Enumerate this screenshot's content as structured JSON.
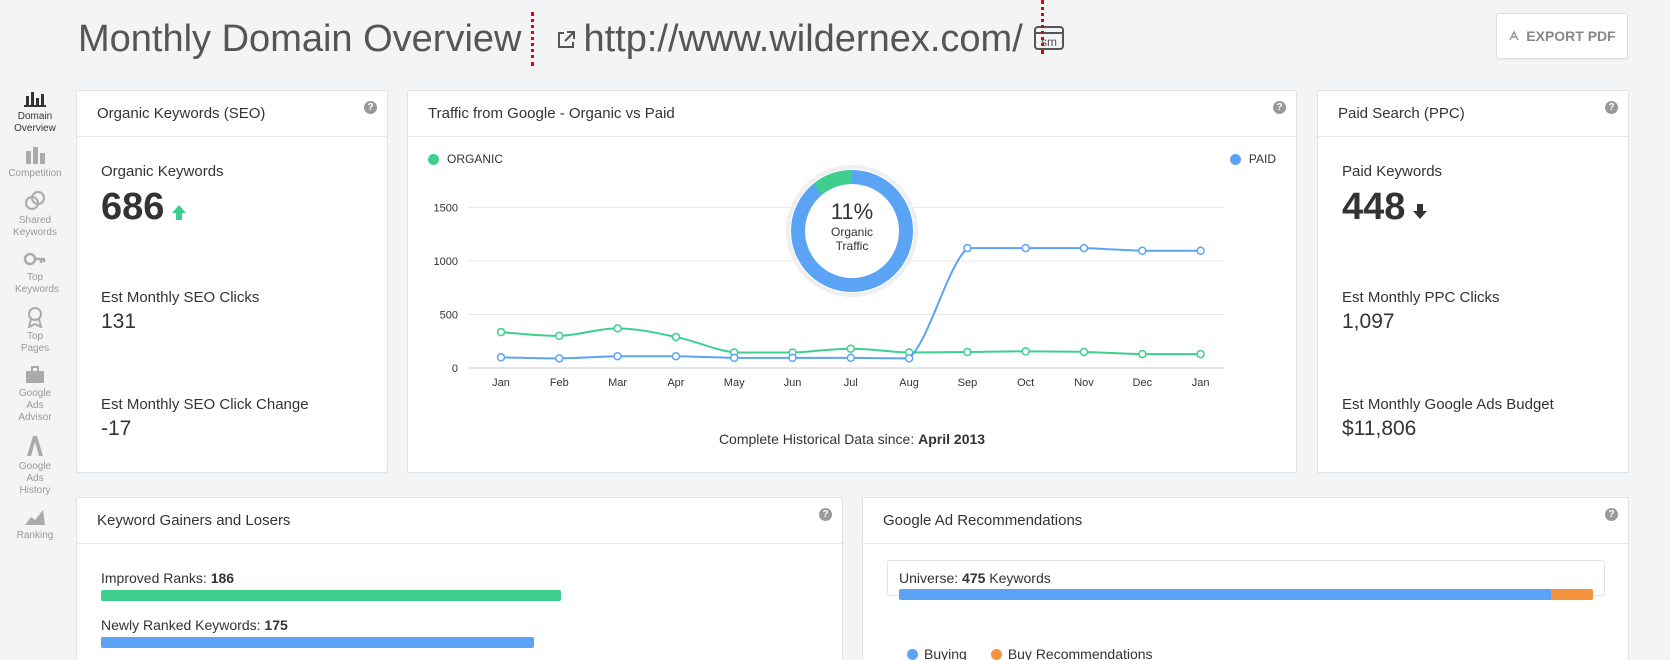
{
  "header": {
    "title": "Monthly Domain Overview",
    "url": "http://www.wildernex.com/",
    "sm_badge": "sm",
    "export_label": "EXPORT PDF"
  },
  "sidebar": {
    "items": [
      {
        "label": "Domain Overview",
        "icon": "bar-chart-icon",
        "active": true
      },
      {
        "label": "Competition",
        "icon": "competition-icon"
      },
      {
        "label": "Shared Keywords",
        "icon": "shared-keywords-icon"
      },
      {
        "label": "Top Keywords",
        "icon": "key-icon"
      },
      {
        "label": "Top Pages",
        "icon": "ribbon-icon"
      },
      {
        "label": "Google Ads Advisor",
        "icon": "briefcase-icon"
      },
      {
        "label": "Google Ads History",
        "icon": "history-icon"
      },
      {
        "label": "Ranking",
        "icon": "ranking-icon"
      }
    ]
  },
  "seo": {
    "title": "Organic Keywords (SEO)",
    "keywords_label": "Organic Keywords",
    "keywords_value": "686",
    "clicks_label": "Est Monthly SEO Clicks",
    "clicks_value": "131",
    "change_label": "Est Monthly SEO Click Change",
    "change_value": "-17"
  },
  "traffic": {
    "title": "Traffic from Google - Organic vs Paid",
    "legend_organic": "ORGANIC",
    "legend_paid": "PAID",
    "donut_percent": "11%",
    "donut_label_1": "Organic",
    "donut_label_2": "Traffic",
    "footer_prefix": "Complete Historical Data since:",
    "footer_date": "April 2013"
  },
  "ppc": {
    "title": "Paid Search (PPC)",
    "keywords_label": "Paid Keywords",
    "keywords_value": "448",
    "clicks_label": "Est Monthly PPC Clicks",
    "clicks_value": "1,097",
    "budget_label": "Est Monthly Google Ads Budget",
    "budget_value": "$11,806"
  },
  "gainers": {
    "title": "Keyword Gainers and Losers",
    "improved_label": "Improved Ranks:",
    "improved_value": "186",
    "new_label": "Newly Ranked Keywords:",
    "new_value": "175"
  },
  "ads": {
    "title": "Google Ad Recommendations",
    "universe_label": "Universe:",
    "universe_value": "475",
    "universe_suffix": "Keywords",
    "legend_buying": "Buying",
    "legend_buy_rec": "Buy Recommendations",
    "buying_share": 0.94
  },
  "colors": {
    "organic": "#3ecf8e",
    "paid": "#5ba4f5",
    "orange": "#f5923e"
  },
  "chart_data": {
    "type": "line",
    "categories": [
      "Jan",
      "Feb",
      "Mar",
      "Apr",
      "May",
      "Jun",
      "Jul",
      "Aug",
      "Sep",
      "Oct",
      "Nov",
      "Dec",
      "Jan"
    ],
    "series": [
      {
        "name": "ORGANIC",
        "values": [
          335,
          300,
          370,
          290,
          145,
          145,
          180,
          145,
          150,
          155,
          150,
          130,
          130
        ]
      },
      {
        "name": "PAID",
        "values": [
          100,
          90,
          110,
          110,
          95,
          95,
          95,
          90,
          1120,
          1120,
          1120,
          1095,
          1095
        ]
      }
    ],
    "ylim": [
      0,
      1700
    ],
    "yticks": [
      0,
      500,
      1000,
      1500
    ],
    "organic_share": 0.11
  }
}
